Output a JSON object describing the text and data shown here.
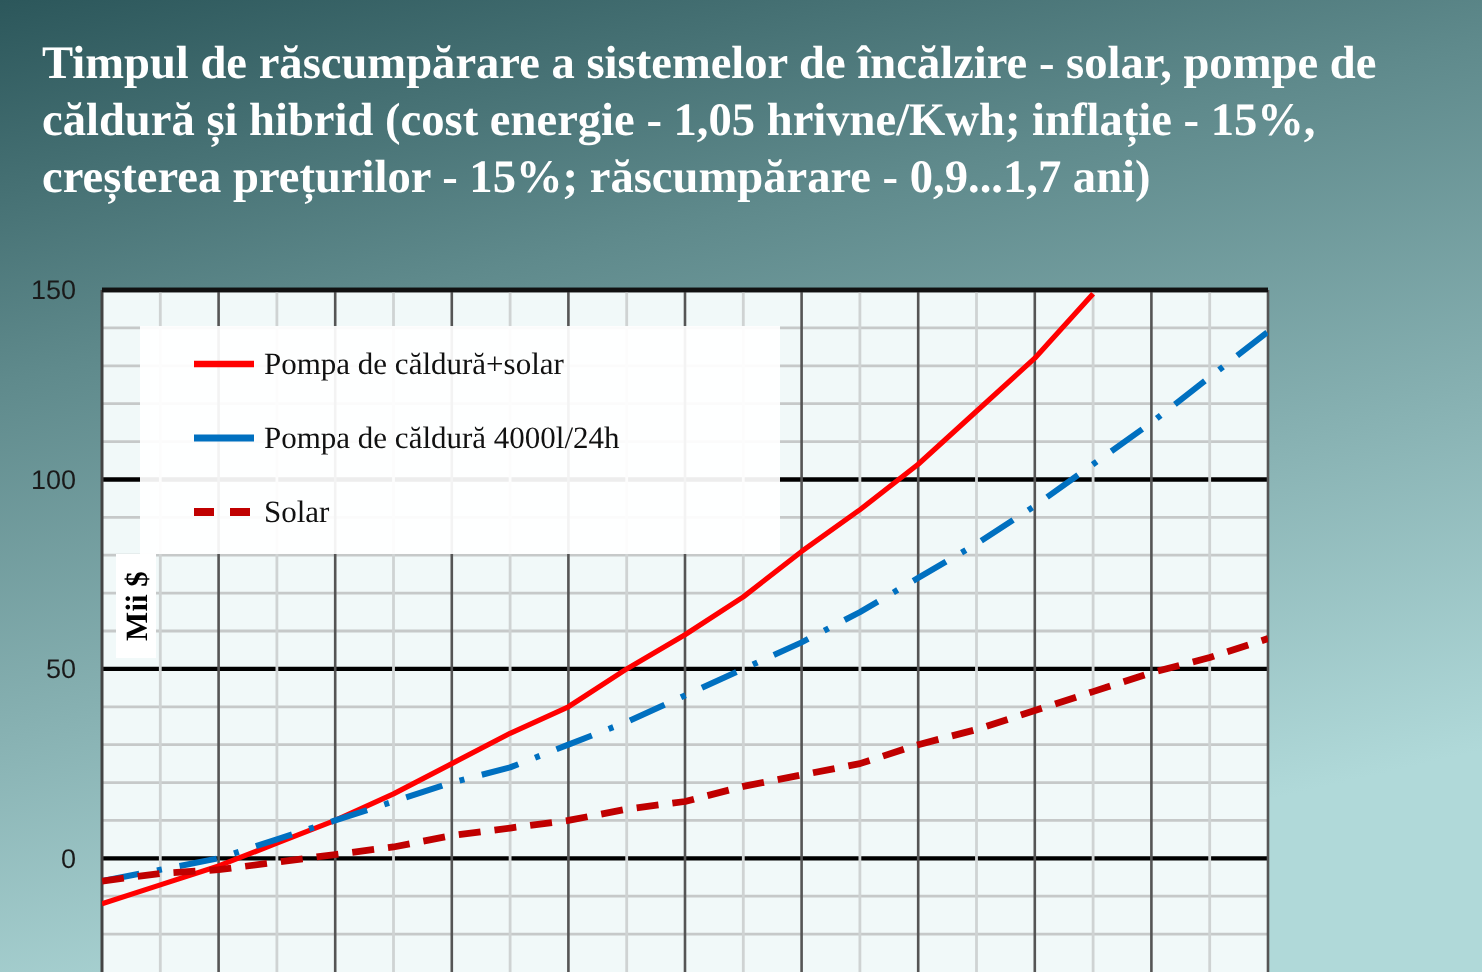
{
  "chart_data": {
    "type": "line",
    "title": "Timpul de răscumpărare a sistemelor de încălzire - solar, pompe de căldură și hibrid (cost energie - 1,05 hrivne/Kwh; inflație - 15%, creșterea prețurilor - 15%; răscumpărare - 0,9...1,7 ani)",
    "ylabel": "Mii $",
    "categories": [
      null,
      null,
      null,
      null,
      null,
      null,
      null,
      null,
      null,
      null,
      null,
      null,
      null,
      null,
      null,
      null,
      null,
      null,
      null,
      null,
      null
    ],
    "series": [
      {
        "name": "Pompa de căldură+solar",
        "color": "#ff0000",
        "line_style": "solid",
        "values": [
          -12,
          -7,
          -2,
          4,
          10,
          17,
          25,
          33,
          40,
          50,
          59,
          69,
          81,
          92,
          104,
          118,
          132,
          149,
          null,
          null,
          null
        ]
      },
      {
        "name": "Pompa de căldură 4000l/24h",
        "color": "#0070c0",
        "line_style": "dashdot",
        "values": [
          -6,
          -3,
          0,
          5,
          10,
          15,
          20,
          24,
          30,
          36,
          43,
          50,
          57,
          65,
          74,
          83,
          93,
          104,
          115,
          127,
          139
        ]
      },
      {
        "name": "Solar",
        "color": "#c00000",
        "line_style": "dashed",
        "values": [
          -6,
          -4,
          -3,
          -1,
          1,
          3,
          6,
          8,
          10,
          13,
          15,
          19,
          22,
          25,
          30,
          34,
          39,
          44,
          49,
          53,
          58
        ]
      }
    ],
    "ylim": [
      -30,
      150
    ],
    "yticks": [
      {
        "value": -20,
        "label": null
      },
      {
        "value": -10,
        "label": null
      },
      0,
      {
        "value": 10,
        "label": null
      },
      {
        "value": 20,
        "label": null
      },
      {
        "value": 30,
        "label": null
      },
      {
        "value": 40,
        "label": null
      },
      50,
      {
        "value": 60,
        "label": null
      },
      {
        "value": 70,
        "label": null
      },
      {
        "value": 80,
        "label": null
      },
      {
        "value": 90,
        "label": null
      },
      100,
      {
        "value": 110,
        "label": null
      },
      {
        "value": 120,
        "label": null
      },
      {
        "value": 130,
        "label": null
      },
      {
        "value": 140,
        "label": null
      },
      150
    ],
    "grid": true,
    "legend": "top left",
    "tick_labels": "y"
  }
}
